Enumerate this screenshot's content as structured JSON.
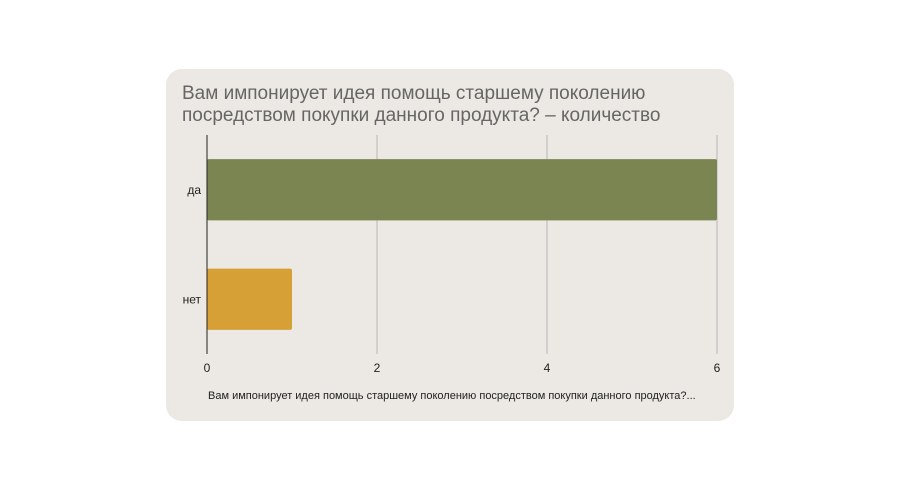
{
  "chart_data": {
    "type": "bar",
    "orientation": "horizontal",
    "title": "Вам импонирует идея помощь старшему поколению посредством покупки данного продукта? – количество",
    "xlabel": "Вам импонирует идея помощь старшему поколению посредством покупки данного продукта?...",
    "ylabel": "",
    "categories": [
      "да",
      "нет"
    ],
    "values": [
      6,
      1
    ],
    "bar_colors": [
      "#7a8551",
      "#d7a036"
    ],
    "xlim": [
      0,
      6
    ],
    "x_ticks": [
      "0",
      "2",
      "4",
      "6"
    ],
    "grid": true,
    "legend": "none"
  },
  "colors": {
    "card_background": "#ece8e3",
    "title_text": "#666666",
    "grid": "#b8b8b8",
    "axis": "#222222"
  }
}
